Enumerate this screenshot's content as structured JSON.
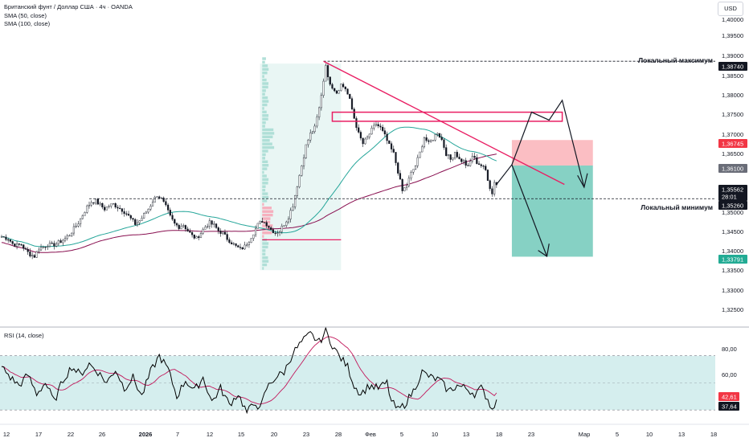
{
  "header": {
    "title": "Британский фунт / Доллар США · 4ч · OANDA",
    "indicator_1": "SMA (50, close)",
    "indicator_2": "SMA (100, close)",
    "currency": "USD"
  },
  "rsi_panel": {
    "title": "RSI (14, close)",
    "y_ticks": [
      "80,00",
      "60,00"
    ],
    "rsi_value": "37,64",
    "rsi_ma_value": "42,61"
  },
  "annotations": {
    "local_high": "Локальный максимум",
    "local_low": "Локальный минимум"
  },
  "price_axis": {
    "ticks": [
      "1,40000",
      "1,39500",
      "1,39000",
      "1,38500",
      "1,38000",
      "1,37500",
      "1,37000",
      "1,36500",
      "1,35000",
      "1,34500",
      "1,34000",
      "1,33500",
      "1,33000",
      "1,32500"
    ],
    "labels": {
      "local_high": "1,38740",
      "target_top": "1,36745",
      "entry": "1,36100",
      "current": "1,35562",
      "countdown": "28:01",
      "local_low": "1,35260",
      "target_bottom": "1,33791"
    }
  },
  "time_axis": {
    "labels": [
      "12",
      "17",
      "22",
      "26",
      "2026",
      "7",
      "12",
      "15",
      "20",
      "23",
      "28",
      "Фев",
      "5",
      "10",
      "13",
      "18",
      "23",
      "Мар",
      "5",
      "10",
      "13",
      "18"
    ]
  },
  "colors": {
    "bull": "#089981",
    "bear": "#f23645",
    "sma50": "#26a69a",
    "sma100": "#880e4f",
    "trendline": "#e91e63",
    "rsi_line": "#000000",
    "rsi_ma": "#c2185b",
    "rsi_band": "#d5eeee"
  },
  "chart_data": {
    "type": "candlestick",
    "symbol": "GBPUSD",
    "timeframe": "4h",
    "ylim": [
      1.3205,
      1.4025
    ],
    "levels": {
      "local_high": 1.3874,
      "local_low": 1.3526,
      "target_top": 1.36745,
      "entry": 1.361,
      "target_bottom": 1.33791,
      "current": 1.35562
    },
    "rsi": {
      "ylim": [
        20,
        90
      ],
      "band": [
        30,
        70
      ],
      "last": 37.64,
      "ma_last": 42.61
    },
    "anchors": [
      [
        0,
        1.343
      ],
      [
        3,
        1.3425
      ],
      [
        5,
        1.3412
      ],
      [
        7,
        1.3408
      ],
      [
        9,
        1.341
      ],
      [
        11,
        1.3395
      ],
      [
        13,
        1.3385
      ],
      [
        15,
        1.338
      ],
      [
        17,
        1.34
      ],
      [
        19,
        1.3404
      ],
      [
        21,
        1.341
      ],
      [
        23,
        1.3408
      ],
      [
        25,
        1.3412
      ],
      [
        27,
        1.3418
      ],
      [
        29,
        1.3425
      ],
      [
        31,
        1.3435
      ],
      [
        33,
        1.345
      ],
      [
        35,
        1.3465
      ],
      [
        37,
        1.3485
      ],
      [
        39,
        1.3505
      ],
      [
        41,
        1.3518
      ],
      [
        43,
        1.352
      ],
      [
        45,
        1.351
      ],
      [
        47,
        1.35
      ],
      [
        49,
        1.3508
      ],
      [
        51,
        1.3512
      ],
      [
        53,
        1.3505
      ],
      [
        55,
        1.3498
      ],
      [
        57,
        1.3488
      ],
      [
        59,
        1.3475
      ],
      [
        61,
        1.3462
      ],
      [
        63,
        1.347
      ],
      [
        65,
        1.3485
      ],
      [
        67,
        1.35
      ],
      [
        69,
        1.352
      ],
      [
        71,
        1.3535
      ],
      [
        73,
        1.3525
      ],
      [
        75,
        1.3505
      ],
      [
        77,
        1.348
      ],
      [
        79,
        1.3462
      ],
      [
        81,
        1.3455
      ],
      [
        83,
        1.346
      ],
      [
        85,
        1.3445
      ],
      [
        87,
        1.3432
      ],
      [
        89,
        1.3425
      ],
      [
        91,
        1.344
      ],
      [
        93,
        1.3455
      ],
      [
        95,
        1.3465
      ],
      [
        97,
        1.3458
      ],
      [
        99,
        1.3445
      ],
      [
        101,
        1.3438
      ],
      [
        103,
        1.3425
      ],
      [
        105,
        1.3415
      ],
      [
        107,
        1.3405
      ],
      [
        109,
        1.3398
      ],
      [
        111,
        1.3405
      ],
      [
        113,
        1.342
      ],
      [
        115,
        1.344
      ],
      [
        117,
        1.346
      ],
      [
        119,
        1.347
      ],
      [
        121,
        1.3462
      ],
      [
        123,
        1.3448
      ],
      [
        125,
        1.344
      ],
      [
        127,
        1.3445
      ],
      [
        129,
        1.3462
      ],
      [
        131,
        1.348
      ],
      [
        133,
        1.351
      ],
      [
        135,
        1.356
      ],
      [
        137,
        1.361
      ],
      [
        139,
        1.366
      ],
      [
        141,
        1.369
      ],
      [
        143,
        1.3705
      ],
      [
        145,
        1.3755
      ],
      [
        147,
        1.3825
      ],
      [
        148,
        1.3868
      ],
      [
        149,
        1.383
      ],
      [
        151,
        1.381
      ],
      [
        153,
        1.3795
      ],
      [
        155,
        1.3815
      ],
      [
        157,
        1.3805
      ],
      [
        159,
        1.3775
      ],
      [
        161,
        1.373
      ],
      [
        163,
        1.369
      ],
      [
        165,
        1.3665
      ],
      [
        167,
        1.368
      ],
      [
        169,
        1.37
      ],
      [
        171,
        1.3715
      ],
      [
        173,
        1.3705
      ],
      [
        175,
        1.3685
      ],
      [
        177,
        1.366
      ],
      [
        179,
        1.364
      ],
      [
        181,
        1.3595
      ],
      [
        183,
        1.3545
      ],
      [
        185,
        1.356
      ],
      [
        187,
        1.359
      ],
      [
        189,
        1.361
      ],
      [
        191,
        1.3642
      ],
      [
        193,
        1.3682
      ],
      [
        195,
        1.3665
      ],
      [
        197,
        1.3678
      ],
      [
        199,
        1.3695
      ],
      [
        201,
        1.3675
      ],
      [
        203,
        1.364
      ],
      [
        205,
        1.3625
      ],
      [
        207,
        1.3645
      ],
      [
        209,
        1.3625
      ],
      [
        211,
        1.362
      ],
      [
        213,
        1.3605
      ],
      [
        215,
        1.3635
      ],
      [
        217,
        1.3618
      ],
      [
        219,
        1.361
      ],
      [
        221,
        1.3598
      ],
      [
        223,
        1.3555
      ],
      [
        224,
        1.3538
      ],
      [
        225,
        1.357
      ],
      [
        226,
        1.3562
      ]
    ],
    "rsi_anchors": [
      [
        0,
        62
      ],
      [
        4,
        54
      ],
      [
        8,
        48
      ],
      [
        12,
        56
      ],
      [
        16,
        42
      ],
      [
        20,
        50
      ],
      [
        24,
        36
      ],
      [
        28,
        52
      ],
      [
        32,
        62
      ],
      [
        36,
        56
      ],
      [
        40,
        64
      ],
      [
        44,
        58
      ],
      [
        48,
        50
      ],
      [
        52,
        60
      ],
      [
        56,
        46
      ],
      [
        60,
        54
      ],
      [
        64,
        40
      ],
      [
        68,
        58
      ],
      [
        72,
        70
      ],
      [
        76,
        60
      ],
      [
        80,
        40
      ],
      [
        84,
        52
      ],
      [
        88,
        44
      ],
      [
        92,
        54
      ],
      [
        96,
        36
      ],
      [
        100,
        46
      ],
      [
        104,
        34
      ],
      [
        108,
        42
      ],
      [
        112,
        28
      ],
      [
        116,
        36
      ],
      [
        118,
        30
      ],
      [
        121,
        46
      ],
      [
        125,
        54
      ],
      [
        129,
        58
      ],
      [
        133,
        72
      ],
      [
        137,
        80
      ],
      [
        141,
        86
      ],
      [
        145,
        80
      ],
      [
        148,
        88
      ],
      [
        151,
        78
      ],
      [
        154,
        70
      ],
      [
        158,
        62
      ],
      [
        161,
        48
      ],
      [
        164,
        42
      ],
      [
        168,
        48
      ],
      [
        172,
        46
      ],
      [
        176,
        50
      ],
      [
        178,
        36
      ],
      [
        181,
        30
      ],
      [
        184,
        34
      ],
      [
        188,
        44
      ],
      [
        192,
        58
      ],
      [
        196,
        54
      ],
      [
        200,
        52
      ],
      [
        204,
        44
      ],
      [
        208,
        48
      ],
      [
        212,
        46
      ],
      [
        216,
        42
      ],
      [
        219,
        46
      ],
      [
        222,
        38
      ],
      [
        224,
        30
      ],
      [
        226,
        38
      ]
    ]
  }
}
